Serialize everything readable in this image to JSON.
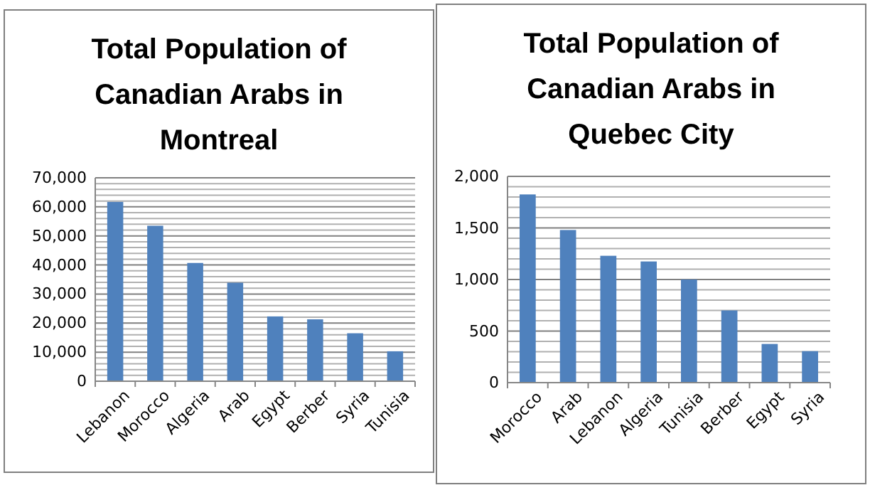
{
  "chart_data": [
    {
      "type": "bar",
      "title": "Total Population of Canadian Arabs in Montreal",
      "categories": [
        "Lebanon",
        "Morocco",
        "Algeria",
        "Arab",
        "Egypt",
        "Berber",
        "Syria",
        "Tunisia"
      ],
      "values": [
        61700,
        53500,
        40700,
        33900,
        22300,
        21300,
        16500,
        10300
      ],
      "color": "#4f81bd",
      "ylim": [
        0,
        70000
      ],
      "yticks": [
        {
          "value": 0,
          "label": "0"
        },
        {
          "value": 2000,
          "label": null
        },
        {
          "value": 4000,
          "label": null
        },
        {
          "value": 6000,
          "label": null
        },
        {
          "value": 8000,
          "label": null
        },
        {
          "value": 10000,
          "label": "10,000"
        },
        {
          "value": 12000,
          "label": null
        },
        {
          "value": 14000,
          "label": null
        },
        {
          "value": 16000,
          "label": null
        },
        {
          "value": 18000,
          "label": null
        },
        {
          "value": 20000,
          "label": "20,000"
        },
        {
          "value": 22000,
          "label": null
        },
        {
          "value": 24000,
          "label": null
        },
        {
          "value": 26000,
          "label": null
        },
        {
          "value": 28000,
          "label": null
        },
        {
          "value": 30000,
          "label": "30,000"
        },
        {
          "value": 32000,
          "label": null
        },
        {
          "value": 34000,
          "label": null
        },
        {
          "value": 36000,
          "label": null
        },
        {
          "value": 38000,
          "label": null
        },
        {
          "value": 40000,
          "label": "40,000"
        },
        {
          "value": 42000,
          "label": null
        },
        {
          "value": 44000,
          "label": null
        },
        {
          "value": 46000,
          "label": null
        },
        {
          "value": 48000,
          "label": null
        },
        {
          "value": 50000,
          "label": "50,000"
        },
        {
          "value": 52000,
          "label": null
        },
        {
          "value": 54000,
          "label": null
        },
        {
          "value": 56000,
          "label": null
        },
        {
          "value": 58000,
          "label": null
        },
        {
          "value": 60000,
          "label": "60,000"
        },
        {
          "value": 62000,
          "label": null
        },
        {
          "value": 64000,
          "label": null
        },
        {
          "value": 66000,
          "label": null
        },
        {
          "value": 68000,
          "label": null
        },
        {
          "value": 70000,
          "label": "70,000"
        }
      ],
      "grid": "y"
    },
    {
      "type": "bar",
      "title": "Total Population of Canadian Arabs in Quebec City",
      "categories": [
        "Morocco",
        "Arab",
        "Lebanon",
        "Algeria",
        "Tunisia",
        "Berber",
        "Egypt",
        "Syria"
      ],
      "values": [
        1825,
        1480,
        1230,
        1175,
        1000,
        700,
        375,
        305
      ],
      "color": "#4f81bd",
      "ylim": [
        0,
        2000
      ],
      "yticks": [
        {
          "value": 0,
          "label": "0"
        },
        {
          "value": 100,
          "label": null
        },
        {
          "value": 200,
          "label": null
        },
        {
          "value": 300,
          "label": null
        },
        {
          "value": 400,
          "label": null
        },
        {
          "value": 500,
          "label": "500"
        },
        {
          "value": 600,
          "label": null
        },
        {
          "value": 700,
          "label": null
        },
        {
          "value": 800,
          "label": null
        },
        {
          "value": 900,
          "label": null
        },
        {
          "value": 1000,
          "label": "1,000"
        },
        {
          "value": 1100,
          "label": null
        },
        {
          "value": 1200,
          "label": null
        },
        {
          "value": 1300,
          "label": null
        },
        {
          "value": 1400,
          "label": null
        },
        {
          "value": 1500,
          "label": "1,500"
        },
        {
          "value": 1600,
          "label": null
        },
        {
          "value": 1700,
          "label": null
        },
        {
          "value": 1800,
          "label": null
        },
        {
          "value": 1900,
          "label": null
        },
        {
          "value": 2000,
          "label": "2,000"
        }
      ],
      "grid": "y"
    }
  ]
}
